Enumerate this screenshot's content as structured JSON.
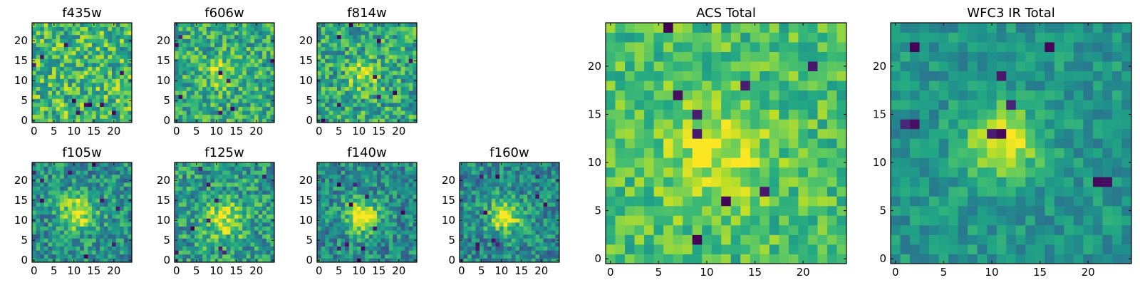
{
  "chart_data": [
    {
      "type": "heatmap",
      "title": "f435w",
      "colormap": "viridis",
      "grid_size": 25,
      "xticks": [
        "0",
        "5",
        "10",
        "15",
        "20"
      ],
      "yticks": [
        "0",
        "5",
        "10",
        "15",
        "20"
      ],
      "seed": 11,
      "center": [
        10,
        10
      ],
      "blob_amp": 0.0,
      "blob_sigma": 3.0,
      "base": 0.68,
      "noise": 0.45,
      "dark_pixels": 10
    },
    {
      "type": "heatmap",
      "title": "f606w",
      "colormap": "viridis",
      "grid_size": 25,
      "xticks": [
        "0",
        "5",
        "10",
        "15",
        "20"
      ],
      "yticks": [
        "0",
        "5",
        "10",
        "15",
        "20"
      ],
      "seed": 23,
      "center": [
        11,
        12
      ],
      "blob_amp": 0.25,
      "blob_sigma": 2.6,
      "base": 0.62,
      "noise": 0.4,
      "dark_pixels": 8
    },
    {
      "type": "heatmap",
      "title": "f814w",
      "colormap": "viridis",
      "grid_size": 25,
      "xticks": [
        "0",
        "5",
        "10",
        "15",
        "20"
      ],
      "yticks": [
        "0",
        "5",
        "10",
        "15",
        "20"
      ],
      "seed": 37,
      "center": [
        11,
        11
      ],
      "blob_amp": 0.3,
      "blob_sigma": 2.5,
      "base": 0.6,
      "noise": 0.42,
      "dark_pixels": 9
    },
    {
      "type": "heatmap",
      "title": "f105w",
      "colormap": "viridis",
      "grid_size": 25,
      "xticks": [
        "0",
        "5",
        "10",
        "15",
        "20"
      ],
      "yticks": [
        "0",
        "5",
        "10",
        "15",
        "20"
      ],
      "seed": 41,
      "center": [
        11,
        12
      ],
      "blob_amp": 0.45,
      "blob_sigma": 3.2,
      "base": 0.5,
      "noise": 0.38,
      "dark_pixels": 9
    },
    {
      "type": "heatmap",
      "title": "f125w",
      "colormap": "viridis",
      "grid_size": 25,
      "xticks": [
        "0",
        "5",
        "10",
        "15",
        "20"
      ],
      "yticks": [
        "0",
        "5",
        "10",
        "15",
        "20"
      ],
      "seed": 53,
      "center": [
        12,
        10
      ],
      "blob_amp": 0.35,
      "blob_sigma": 3.6,
      "base": 0.55,
      "noise": 0.4,
      "dark_pixels": 9
    },
    {
      "type": "heatmap",
      "title": "f140w",
      "colormap": "viridis",
      "grid_size": 25,
      "xticks": [
        "0",
        "5",
        "10",
        "15",
        "20"
      ],
      "yticks": [
        "0",
        "5",
        "10",
        "15",
        "20"
      ],
      "seed": 67,
      "center": [
        11,
        11
      ],
      "blob_amp": 0.5,
      "blob_sigma": 3.0,
      "base": 0.48,
      "noise": 0.36,
      "dark_pixels": 10
    },
    {
      "type": "heatmap",
      "title": "f160w",
      "colormap": "viridis",
      "grid_size": 25,
      "xticks": [
        "0",
        "5",
        "10",
        "15",
        "20"
      ],
      "yticks": [
        "0",
        "5",
        "10",
        "15",
        "20"
      ],
      "seed": 79,
      "center": [
        11,
        11
      ],
      "blob_amp": 0.5,
      "blob_sigma": 3.0,
      "base": 0.47,
      "noise": 0.36,
      "dark_pixels": 10
    },
    {
      "type": "heatmap",
      "title": "ACS Total",
      "colormap": "viridis",
      "grid_size": 25,
      "xticks": [
        "0",
        "5",
        "10",
        "15",
        "20"
      ],
      "yticks": [
        "0",
        "5",
        "10",
        "15",
        "20"
      ],
      "seed": 97,
      "center": [
        11,
        11
      ],
      "blob_amp": 0.22,
      "blob_sigma": 4.0,
      "base": 0.7,
      "noise": 0.28,
      "dark_pixels": 9
    },
    {
      "type": "heatmap",
      "title": "WFC3 IR Total",
      "colormap": "viridis",
      "grid_size": 25,
      "xticks": [
        "0",
        "5",
        "10",
        "15",
        "20"
      ],
      "yticks": [
        "0",
        "5",
        "10",
        "15",
        "20"
      ],
      "seed": 131,
      "center": [
        11,
        12
      ],
      "blob_amp": 0.5,
      "blob_sigma": 2.6,
      "base": 0.52,
      "noise": 0.22,
      "dark_pixels": 10
    }
  ]
}
